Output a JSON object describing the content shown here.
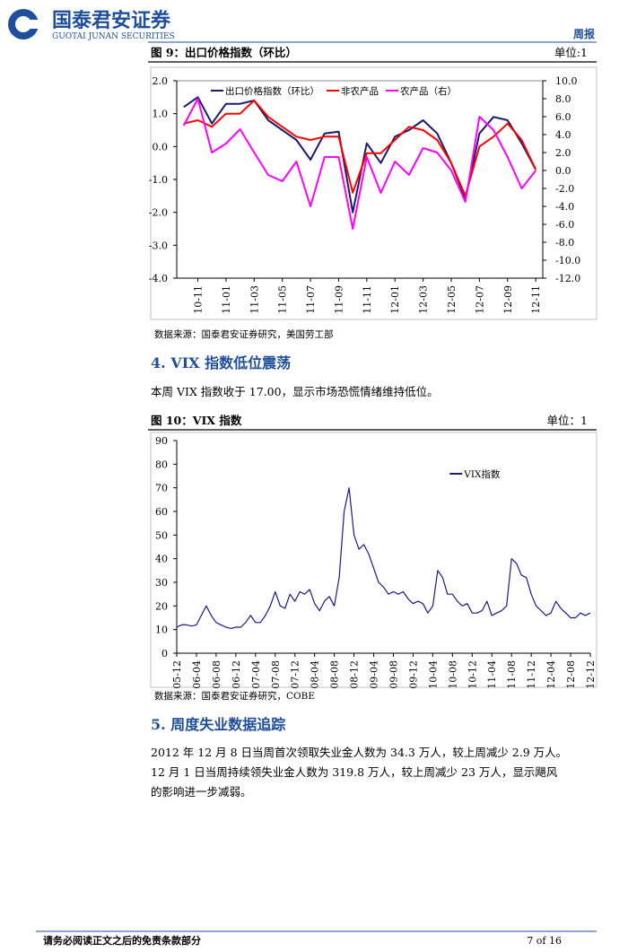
{
  "header": {
    "logo": "国泰君安证券",
    "logo_en": "GUOTAI JUNAN SECURITIES",
    "report_type": "周报"
  },
  "chart_data": [
    {
      "type": "line",
      "title": "图 9：出口价格指数（环比）",
      "unit": "单位:1",
      "source": "数据来源：国泰君安证券研究，美国劳工部",
      "categories": [
        null,
        "10-11",
        null,
        "11-01",
        null,
        "11-03",
        null,
        "11-05",
        null,
        "11-07",
        null,
        "11-09",
        null,
        "11-11",
        null,
        "12-01",
        null,
        "12-03",
        null,
        "12-05",
        null,
        "12-07",
        null,
        "12-09",
        null,
        "12-11"
      ],
      "series": [
        {
          "name": "出口价格指数（环比）",
          "color": "#1a1a6e",
          "values": [
            1.2,
            1.5,
            0.7,
            1.3,
            1.3,
            1.4,
            0.8,
            0.5,
            0.2,
            -0.4,
            0.4,
            0.45,
            -2.0,
            0.1,
            -0.5,
            0.3,
            0.5,
            0.8,
            0.4,
            -0.5,
            -1.6,
            0.4,
            0.9,
            0.8,
            0.1,
            -0.7
          ]
        },
        {
          "name": "非农产品",
          "color": "#ff0000",
          "values": [
            0.7,
            0.8,
            0.6,
            1.0,
            1.0,
            1.4,
            0.9,
            0.6,
            0.3,
            0.2,
            0.3,
            0.3,
            -1.4,
            -0.2,
            -0.2,
            0.2,
            0.6,
            0.5,
            0.2,
            -0.5,
            -1.5,
            0.0,
            0.3,
            0.7,
            0.2,
            -0.7
          ]
        },
        {
          "name": "农产品（右）",
          "color": "#ff00ff",
          "axis": "y2",
          "values": [
            5.0,
            8.0,
            2.0,
            3.0,
            4.6,
            2.0,
            -0.5,
            -1.2,
            1.0,
            -4.0,
            1.5,
            1.5,
            -6.5,
            1.5,
            -2.5,
            1.0,
            -0.5,
            2.5,
            2.0,
            0.0,
            -3.5,
            6.0,
            4.5,
            1.5,
            -2.0,
            0.0
          ]
        }
      ],
      "ylim": [
        -4,
        2
      ],
      "yticks": [
        {
          "value": -4,
          "label": "-4.0"
        },
        {
          "value": -3,
          "label": "-3.0"
        },
        {
          "value": -2,
          "label": "-2.0"
        },
        {
          "value": -1,
          "label": "-1.0"
        },
        {
          "value": 0,
          "label": "0.0"
        },
        {
          "value": 1,
          "label": "1.0"
        },
        {
          "value": 2,
          "label": "2.0"
        }
      ],
      "y2lim": [
        -12,
        10
      ],
      "y2ticks": [
        {
          "value": -12,
          "label": "-12.0"
        },
        {
          "value": -10,
          "label": "-10.0"
        },
        {
          "value": -8,
          "label": "-8.0"
        },
        {
          "value": -6,
          "label": "-6.0"
        },
        {
          "value": -4,
          "label": "-4.0"
        },
        {
          "value": -2,
          "label": "-2.0"
        },
        {
          "value": 0,
          "label": "0.0"
        },
        {
          "value": 2,
          "label": "2.0"
        },
        {
          "value": 4,
          "label": "4.0"
        },
        {
          "value": 6,
          "label": "6.0"
        },
        {
          "value": 8,
          "label": "8.0"
        },
        {
          "value": 10,
          "label": "10.0"
        }
      ],
      "grid": false,
      "legend": "top-left"
    },
    {
      "type": "line",
      "title": "图 10：VIX 指数",
      "unit": "单位：1",
      "source": "数据来源：国泰君安证券研究，COBE",
      "categories": [
        "05-12",
        null,
        null,
        null,
        "06-04",
        null,
        null,
        null,
        "06-08",
        null,
        null,
        null,
        "06-12",
        null,
        null,
        null,
        "07-04",
        null,
        null,
        null,
        "07-08",
        null,
        null,
        null,
        "07-12",
        null,
        null,
        null,
        "08-04",
        null,
        null,
        null,
        "08-08",
        null,
        null,
        null,
        "08-12",
        null,
        null,
        null,
        "09-04",
        null,
        null,
        null,
        "09-08",
        null,
        null,
        null,
        "09-12",
        null,
        null,
        null,
        "10-04",
        null,
        null,
        null,
        "10-08",
        null,
        null,
        null,
        "10-12",
        null,
        null,
        null,
        "11-04",
        null,
        null,
        null,
        "11-08",
        null,
        null,
        null,
        "11-12",
        null,
        null,
        null,
        "12-04",
        null,
        null,
        null,
        "12-08",
        null,
        null,
        null,
        "12-12"
      ],
      "series": [
        {
          "name": "VIX指数",
          "color": "#1a1a8c",
          "values": [
            11,
            12,
            12,
            11.5,
            12,
            16,
            20,
            16,
            13,
            12,
            11,
            10.5,
            11,
            11,
            13,
            16,
            13,
            13,
            16,
            20,
            26,
            20,
            19,
            25,
            22,
            26,
            25,
            27,
            21,
            18,
            22,
            24,
            20,
            32,
            60,
            70,
            50,
            44,
            46,
            42,
            36,
            30,
            28,
            25,
            26,
            25,
            26,
            23,
            21,
            22,
            21,
            17,
            20,
            35,
            32,
            25,
            25,
            22,
            20,
            21,
            17,
            17,
            18,
            22,
            16,
            17,
            18,
            20,
            40,
            38,
            33,
            32,
            25,
            20,
            18,
            16,
            17,
            22,
            19,
            17,
            15,
            15,
            17,
            16,
            17
          ]
        }
      ],
      "ylim": [
        0,
        90
      ],
      "yticks": [
        0,
        10,
        20,
        30,
        40,
        50,
        60,
        70,
        80,
        90
      ],
      "grid": false,
      "legend": "right"
    }
  ],
  "section4": {
    "title": "4.  VIX 指数低位震荡",
    "text": "本周 VIX 指数收于 17.00，显示市场恐慌情绪维持低位。"
  },
  "section5": {
    "title": "5.  周度失业数据追踪",
    "lines": [
      "2012 年 12 月 8 日当周首次领取失业金人数为 34.3 万人，较上周减少 2.9 万人。",
      "12 月 1 日当周持续领失业金人数为 319.8 万人，较上周减少 23 万人，显示飓风",
      "的影响进一步减弱。"
    ]
  },
  "footer": {
    "disclaimer": "请务必阅读正文之后的免责条款部分",
    "page": "7 of 16"
  }
}
